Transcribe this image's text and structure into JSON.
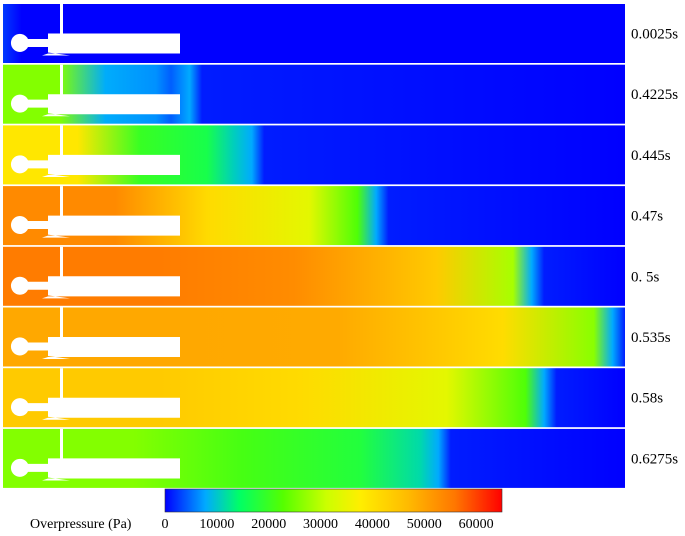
{
  "frames": [
    {
      "time": "0.0025s",
      "front": 0.0,
      "left": 0.04,
      "mid": 0.02
    },
    {
      "time": "0.4225s",
      "front": 0.3,
      "left": 0.4,
      "mid": 0.12
    },
    {
      "time": "0.445s",
      "front": 0.4,
      "left": 0.6,
      "mid": 0.3
    },
    {
      "time": "0.47s",
      "front": 0.6,
      "left": 0.82,
      "mid": 0.62
    },
    {
      "time": "0. 5s",
      "front": 0.85,
      "left": 0.85,
      "mid": 0.8
    },
    {
      "time": "0.535s",
      "front": 0.98,
      "left": 0.76,
      "mid": 0.74
    },
    {
      "time": "0.58s",
      "front": 0.87,
      "left": 0.68,
      "mid": 0.62
    },
    {
      "time": "0.6275s",
      "front": 0.7,
      "left": 0.4,
      "mid": 0.32
    }
  ],
  "legend": {
    "title": "Overpressure (Pa)",
    "ticks": [
      "0",
      "10000",
      "20000",
      "30000",
      "40000",
      "50000",
      "60000"
    ],
    "min": 0,
    "max": 65000
  }
}
